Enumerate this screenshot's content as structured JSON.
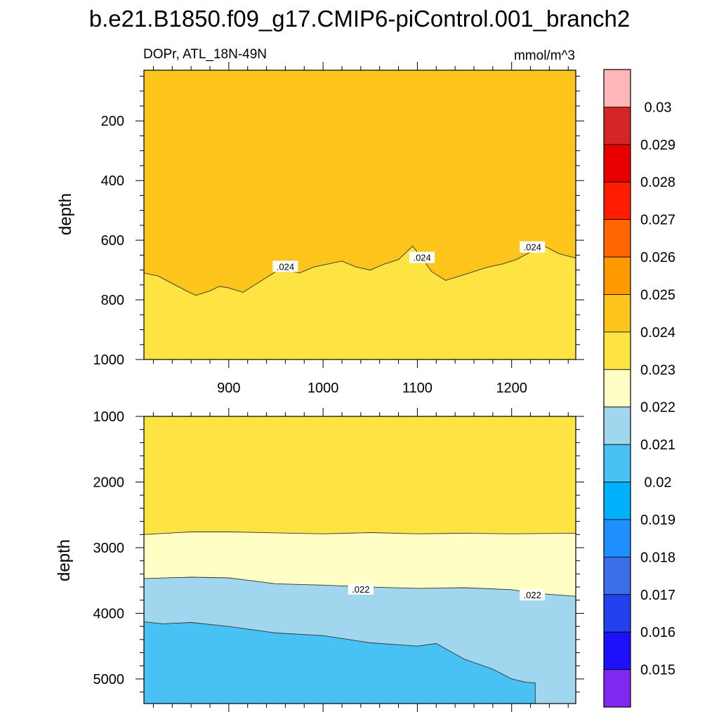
{
  "title": "b.e21.B1850.f09_g17.CMIP6-piControl.001_branch2",
  "subtitle_left": "DOPr, ATL_18N-49N",
  "subtitle_right": "mmol/m^3",
  "chart_data": [
    {
      "type": "contour",
      "panel": "upper",
      "xlabel": "",
      "ylabel": "depth",
      "xlim": [
        810,
        1268
      ],
      "ylim": [
        1000,
        30
      ],
      "y_inverted": true,
      "x_ticks": [
        900,
        1000,
        1100,
        1200
      ],
      "y_ticks": [
        200,
        400,
        600,
        800,
        1000
      ],
      "regions": [
        {
          "range": "0.024-0.025",
          "color": "#fdc41c",
          "position": "above contour"
        },
        {
          "range": "0.023-0.024",
          "color": "#fee442",
          "position": "below contour"
        }
      ],
      "contours": [
        {
          "level": 0.024,
          "x": [
            810,
            825,
            840,
            855,
            865,
            880,
            890,
            900,
            915,
            930,
            950,
            960,
            975,
            990,
            1005,
            1020,
            1035,
            1050,
            1065,
            1080,
            1095,
            1105,
            1115,
            1130,
            1145,
            1160,
            1175,
            1190,
            1205,
            1220,
            1235,
            1250,
            1268
          ],
          "y": [
            710,
            720,
            745,
            770,
            785,
            770,
            755,
            760,
            775,
            745,
            705,
            700,
            710,
            690,
            680,
            670,
            690,
            700,
            680,
            665,
            620,
            660,
            705,
            735,
            720,
            705,
            690,
            680,
            665,
            640,
            620,
            645,
            660
          ]
        }
      ],
      "contour_labels": [
        {
          "text": ".024",
          "x": 960,
          "y": 690
        },
        {
          "text": ".024",
          "x": 1105,
          "y": 660
        },
        {
          "text": ".024",
          "x": 1222,
          "y": 625
        }
      ]
    },
    {
      "type": "contour",
      "panel": "lower",
      "xlabel": "",
      "ylabel": "depth",
      "xlim": [
        810,
        1268
      ],
      "ylim": [
        5375,
        1000
      ],
      "y_inverted": true,
      "x_ticks": [
        900,
        1000,
        1100,
        1200
      ],
      "y_ticks": [
        1000,
        2000,
        3000,
        4000,
        5000
      ],
      "regions": [
        {
          "range": "0.023-0.024",
          "color": "#fee442",
          "position": "top"
        },
        {
          "range": "0.022-0.023",
          "color": "#ffffc5"
        },
        {
          "range": "0.021-0.022",
          "color": "#a0d6ee"
        },
        {
          "range": "0.020-0.021",
          "color": "#48c2f4",
          "position": "bottom"
        }
      ],
      "contours": [
        {
          "level": 0.023,
          "x": [
            810,
            860,
            900,
            950,
            1000,
            1050,
            1100,
            1150,
            1200,
            1268
          ],
          "y": [
            2800,
            2760,
            2760,
            2775,
            2790,
            2770,
            2790,
            2780,
            2790,
            2780
          ]
        },
        {
          "level": 0.022,
          "x": [
            810,
            860,
            900,
            950,
            1000,
            1050,
            1100,
            1150,
            1200,
            1230,
            1268
          ],
          "y": [
            3470,
            3450,
            3460,
            3550,
            3570,
            3600,
            3620,
            3610,
            3640,
            3700,
            3740
          ]
        },
        {
          "level": 0.021,
          "x": [
            810,
            830,
            860,
            900,
            950,
            1000,
            1050,
            1100,
            1120,
            1150,
            1180,
            1200,
            1215,
            1225
          ],
          "y": [
            4130,
            4160,
            4140,
            4200,
            4300,
            4340,
            4450,
            4500,
            4460,
            4700,
            4850,
            5000,
            5050,
            5060
          ]
        }
      ],
      "contour_labels": [
        {
          "text": ".022",
          "x": 1040,
          "y": 3640
        },
        {
          "text": ".022",
          "x": 1222,
          "y": 3730
        }
      ]
    }
  ],
  "colorbar": {
    "labels": [
      "0.03",
      "0.029",
      "0.028",
      "0.027",
      "0.026",
      "0.025",
      "0.024",
      "0.023",
      "0.022",
      "0.021",
      "0.02",
      "0.019",
      "0.018",
      "0.017",
      "0.016",
      "0.015"
    ],
    "colors": [
      "#ffb6b6",
      "#d42626",
      "#e80000",
      "#ff1c00",
      "#ff6600",
      "#ff9900",
      "#fdc41c",
      "#fee442",
      "#ffffc5",
      "#a0d6ee",
      "#48c2f4",
      "#00b2fc",
      "#1e8fff",
      "#3c6ee8",
      "#2240ee",
      "#1d10fa",
      "#8028f0"
    ]
  }
}
